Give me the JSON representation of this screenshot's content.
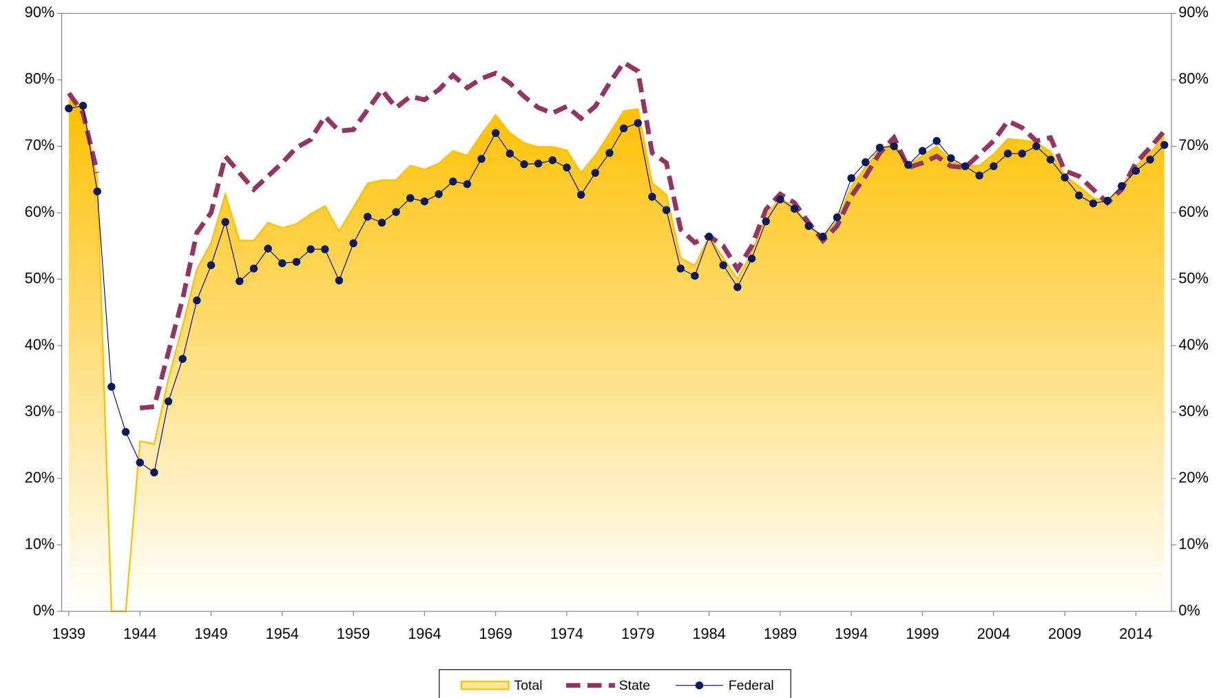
{
  "chart_data": {
    "type": "line",
    "x": [
      1939,
      1940,
      1941,
      1942,
      1943,
      1944,
      1945,
      1946,
      1947,
      1948,
      1949,
      1950,
      1951,
      1952,
      1953,
      1954,
      1955,
      1956,
      1957,
      1958,
      1959,
      1960,
      1961,
      1962,
      1963,
      1964,
      1965,
      1966,
      1967,
      1968,
      1969,
      1970,
      1971,
      1972,
      1973,
      1974,
      1975,
      1976,
      1977,
      1978,
      1979,
      1980,
      1981,
      1982,
      1983,
      1984,
      1985,
      1986,
      1987,
      1988,
      1989,
      1990,
      1991,
      1992,
      1993,
      1994,
      1995,
      1996,
      1997,
      1998,
      1999,
      2000,
      2001,
      2002,
      2003,
      2004,
      2005,
      2006,
      2007,
      2008,
      2009,
      2010,
      2011,
      2012,
      2013,
      2014,
      2015,
      2016
    ],
    "series": [
      {
        "name": "Total",
        "kind": "area",
        "color": "#ffc000",
        "values": [
          77,
          76,
          65,
          0,
          0,
          25.6,
          25.2,
          35,
          43,
          51.5,
          55.5,
          62.8,
          55.8,
          55.8,
          58.5,
          57.7,
          58.3,
          59.8,
          61,
          57.2,
          60.8,
          64.4,
          64.9,
          64.9,
          67.1,
          66.5,
          67.4,
          69.3,
          68.6,
          71.8,
          74.7,
          72,
          70.5,
          69.9,
          69.9,
          69.4,
          66,
          68.6,
          71.9,
          75.3,
          75.6,
          64.5,
          62.7,
          53.2,
          52,
          56.4,
          53.2,
          50,
          54,
          59.5,
          62.2,
          60.8,
          58.2,
          56.2,
          58.8,
          64,
          66.9,
          69.5,
          70.4,
          67.1,
          68.6,
          70,
          67.8,
          67,
          67.1,
          68.8,
          71.1,
          70.9,
          70.6,
          69.2,
          65.6,
          64,
          62.2,
          61.7,
          64,
          67,
          69,
          71.5
        ]
      },
      {
        "name": "State",
        "kind": "dashed",
        "color": "#943462",
        "values": [
          78,
          75,
          66,
          null,
          null,
          30.6,
          30.8,
          39,
          47,
          57,
          60,
          68.5,
          66,
          63.5,
          65.5,
          67.5,
          69.8,
          71,
          74.5,
          72.3,
          72.5,
          75.5,
          78.5,
          75.8,
          77.5,
          77,
          78.5,
          80.7,
          78.8,
          80.2,
          81,
          79.5,
          77.5,
          75.8,
          75,
          76,
          74.2,
          76,
          79.5,
          82.6,
          81.3,
          69,
          67.5,
          57.5,
          55.5,
          56.5,
          55,
          51.5,
          55,
          60.5,
          62.8,
          61.5,
          58.5,
          55.8,
          58,
          62.5,
          65.5,
          69,
          71.3,
          66.8,
          67.5,
          68.5,
          67,
          66.8,
          68.8,
          70.8,
          73.8,
          72.8,
          70.8,
          71.3,
          66.3,
          65.5,
          63.5,
          61.5,
          63.5,
          67.5,
          69.8,
          72.3
        ]
      },
      {
        "name": "Federal",
        "kind": "marker",
        "color": "#000080",
        "values": [
          75.7,
          76.1,
          63.2,
          33.8,
          27,
          22.4,
          20.9,
          31.6,
          38,
          46.8,
          52.1,
          58.6,
          49.7,
          51.6,
          54.6,
          52.4,
          52.6,
          54.5,
          54.5,
          49.8,
          55.4,
          59.4,
          58.5,
          60.1,
          62.2,
          61.7,
          62.8,
          64.7,
          64.3,
          68.1,
          72,
          68.9,
          67.3,
          67.4,
          67.9,
          66.8,
          62.7,
          66,
          69,
          72.7,
          73.5,
          62.4,
          60.4,
          51.6,
          50.5,
          56.4,
          52.1,
          48.8,
          53.1,
          58.7,
          62,
          60.6,
          58,
          56.4,
          59.3,
          65.2,
          67.6,
          69.8,
          70,
          67.2,
          69.3,
          70.8,
          68.2,
          67,
          65.6,
          67,
          68.9,
          68.9,
          70,
          68,
          65.3,
          62.6,
          61.4,
          61.8,
          64,
          66.3,
          68,
          70.2
        ]
      }
    ],
    "xlim": [
      1938.5,
      2016.5
    ],
    "xticks": [
      1939,
      1944,
      1949,
      1954,
      1959,
      1964,
      1969,
      1974,
      1979,
      1984,
      1989,
      1994,
      1999,
      2004,
      2009,
      2014
    ],
    "ylim": [
      0,
      90
    ],
    "yticks": [
      {
        "value": 0,
        "label": "0%"
      },
      {
        "value": 10,
        "label": "10%"
      },
      {
        "value": 20,
        "label": "20%"
      },
      {
        "value": 30,
        "label": "30%"
      },
      {
        "value": 40,
        "label": "40%"
      },
      {
        "value": 50,
        "label": "50%"
      },
      {
        "value": 60,
        "label": "60%"
      },
      {
        "value": 70,
        "label": "70%"
      },
      {
        "value": 80,
        "label": "80%"
      },
      {
        "value": 90,
        "label": "90%"
      }
    ],
    "y2lim": [
      0,
      90
    ],
    "y2ticks": [
      {
        "value": 0,
        "label": "0%"
      },
      {
        "value": 10,
        "label": "10%"
      },
      {
        "value": 20,
        "label": "20%"
      },
      {
        "value": 30,
        "label": "30%"
      },
      {
        "value": 40,
        "label": "40%"
      },
      {
        "value": 50,
        "label": "50%"
      },
      {
        "value": 60,
        "label": "60%"
      },
      {
        "value": 70,
        "label": "70%"
      },
      {
        "value": 80,
        "label": "80%"
      },
      {
        "value": 90,
        "label": "90%"
      }
    ]
  }
}
